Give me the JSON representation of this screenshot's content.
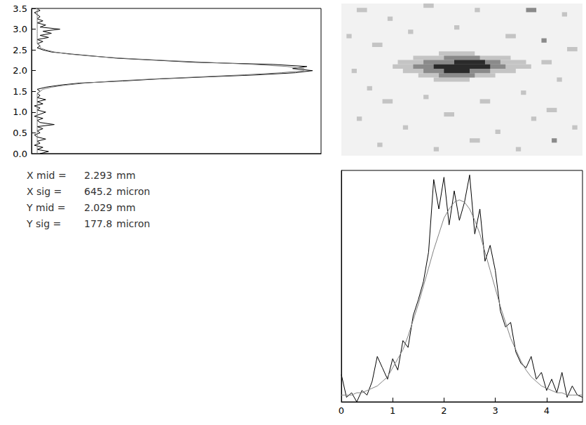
{
  "chart_data": [
    {
      "type": "line",
      "orientation": "horizontal",
      "grid": false,
      "tick_labels": "y",
      "xlim": [
        0,
        1.02
      ],
      "ylim": [
        0,
        3.5
      ],
      "yticks": [
        {
          "value": 0,
          "label": "0.0"
        },
        0.5,
        {
          "value": 1,
          "label": "1.0"
        },
        1.5,
        {
          "value": 2,
          "label": "2.0"
        },
        2.5,
        {
          "value": 3,
          "label": "3.0"
        },
        3.5
      ],
      "y": [
        0,
        0.05,
        0.1,
        0.15,
        0.2,
        0.25,
        0.3,
        0.35,
        0.4,
        0.45,
        0.5,
        0.55,
        0.6,
        0.65,
        0.7,
        0.75,
        0.8,
        0.85,
        0.9,
        0.95,
        1,
        1.05,
        1.1,
        1.15,
        1.2,
        1.25,
        1.3,
        1.35,
        1.4,
        1.45,
        1.5,
        1.55,
        1.6,
        1.65,
        1.7,
        1.75,
        1.8,
        1.85,
        1.9,
        1.95,
        2,
        2.05,
        2.1,
        2.15,
        2.2,
        2.25,
        2.3,
        2.35,
        2.4,
        2.45,
        2.5,
        2.55,
        2.6,
        2.65,
        2.7,
        2.75,
        2.8,
        2.85,
        2.9,
        2.95,
        3,
        3.05,
        3.1,
        3.15,
        3.2,
        3.25,
        3.3,
        3.35,
        3.4,
        3.45,
        3.5
      ],
      "series": [
        {
          "color": "#000000",
          "values": [
            0.03,
            0.06,
            0.02,
            0.04,
            0.01,
            0.03,
            0.02,
            0.05,
            0.02,
            0.01,
            0.03,
            0.02,
            0.04,
            0.02,
            0.08,
            0.03,
            0.02,
            0.04,
            0.01,
            0.03,
            0.05,
            0.02,
            0.03,
            0.01,
            0.04,
            0.02,
            0.05,
            0.02,
            0.03,
            0.02,
            0.03,
            0.02,
            0.05,
            0.1,
            0.17,
            0.32,
            0.45,
            0.62,
            0.8,
            0.93,
            0.99,
            0.92,
            0.97,
            0.85,
            0.58,
            0.44,
            0.3,
            0.22,
            0.14,
            0.07,
            0.04,
            0.02,
            0.03,
            0.02,
            0.04,
            0.02,
            0.06,
            0.03,
            0.07,
            0.04,
            0.1,
            0.03,
            0.05,
            0.02,
            0.04,
            0.02,
            0.03,
            0.02,
            0.01,
            0.03,
            0.02
          ]
        },
        {
          "color": "#808080",
          "values": [
            0.02,
            0.02,
            0.02,
            0.02,
            0.02,
            0.02,
            0.02,
            0.02,
            0.02,
            0.02,
            0.02,
            0.02,
            0.02,
            0.02,
            0.02,
            0.02,
            0.02,
            0.02,
            0.02,
            0.02,
            0.02,
            0.02,
            0.02,
            0.02,
            0.02,
            0.02,
            0.02,
            0.02,
            0.02,
            0.02,
            0.03,
            0.04,
            0.07,
            0.12,
            0.19,
            0.29,
            0.43,
            0.59,
            0.75,
            0.88,
            0.96,
            0.96,
            0.9,
            0.78,
            0.62,
            0.46,
            0.32,
            0.21,
            0.13,
            0.08,
            0.05,
            0.03,
            0.03,
            0.02,
            0.02,
            0.02,
            0.02,
            0.02,
            0.02,
            0.02,
            0.02,
            0.02,
            0.02,
            0.02,
            0.02,
            0.02,
            0.02,
            0.02,
            0.02,
            0.02,
            0.02
          ]
        }
      ]
    },
    {
      "type": "heatmap",
      "grid": false,
      "tick_labels": false,
      "xlim": [
        0,
        4.7
      ],
      "ylim": [
        0,
        3.5
      ],
      "colors": [
        "#c4c4c4",
        "#8a8a8a",
        "#2a2a2a"
      ],
      "segments": [
        [
          0.3,
          0.5,
          3.3,
          3.4,
          1
        ],
        [
          0.9,
          1.0,
          3.1,
          3.2,
          1
        ],
        [
          1.6,
          1.8,
          3.4,
          3.5,
          1
        ],
        [
          2.6,
          2.7,
          3.3,
          3.4,
          1
        ],
        [
          3.6,
          3.8,
          3.3,
          3.4,
          2
        ],
        [
          4.3,
          4.4,
          3.2,
          3.3,
          1
        ],
        [
          0.1,
          0.2,
          2.7,
          2.8,
          1
        ],
        [
          0.6,
          0.8,
          2.5,
          2.6,
          1
        ],
        [
          1.3,
          1.4,
          2.8,
          2.9,
          1
        ],
        [
          2.2,
          2.3,
          2.9,
          3.0,
          1
        ],
        [
          3.2,
          3.4,
          2.7,
          2.8,
          1
        ],
        [
          3.9,
          4.0,
          2.6,
          2.7,
          2
        ],
        [
          4.4,
          4.6,
          2.4,
          2.5,
          1
        ],
        [
          0.2,
          0.3,
          1.9,
          2.0,
          1
        ],
        [
          0.5,
          0.6,
          1.5,
          1.6,
          1
        ],
        [
          3.9,
          4.1,
          2.1,
          2.2,
          1
        ],
        [
          4.2,
          4.3,
          1.7,
          1.8,
          1
        ],
        [
          0.8,
          1.0,
          1.2,
          1.3,
          1
        ],
        [
          1.6,
          1.7,
          1.3,
          1.4,
          1
        ],
        [
          2.7,
          2.9,
          1.2,
          1.3,
          1
        ],
        [
          3.5,
          3.6,
          1.4,
          1.5,
          1
        ],
        [
          4.0,
          4.2,
          1.0,
          1.1,
          1
        ],
        [
          0.3,
          0.4,
          0.8,
          0.9,
          1
        ],
        [
          1.2,
          1.3,
          0.6,
          0.7,
          1
        ],
        [
          2.0,
          2.2,
          0.9,
          1.0,
          1
        ],
        [
          3.0,
          3.1,
          0.5,
          0.6,
          1
        ],
        [
          3.7,
          3.8,
          0.8,
          0.9,
          1
        ],
        [
          4.5,
          4.6,
          0.6,
          0.7,
          1
        ],
        [
          0.7,
          0.8,
          0.2,
          0.3,
          1
        ],
        [
          1.8,
          1.9,
          0.1,
          0.2,
          1
        ],
        [
          2.5,
          2.7,
          0.3,
          0.4,
          1
        ],
        [
          3.4,
          3.5,
          0.1,
          0.2,
          1
        ],
        [
          4.1,
          4.2,
          0.3,
          0.4,
          2
        ],
        [
          1.9,
          2.6,
          2.3,
          2.4,
          1
        ],
        [
          1.4,
          3.3,
          2.2,
          2.3,
          1
        ],
        [
          1.1,
          3.6,
          2.1,
          2.2,
          1
        ],
        [
          1.0,
          3.7,
          2.0,
          2.1,
          1
        ],
        [
          1.2,
          3.4,
          1.9,
          2.0,
          1
        ],
        [
          1.5,
          3.0,
          1.8,
          1.9,
          1
        ],
        [
          1.8,
          2.5,
          1.7,
          1.8,
          1
        ],
        [
          2.0,
          2.7,
          2.2,
          2.3,
          2
        ],
        [
          1.6,
          3.1,
          2.1,
          2.2,
          2
        ],
        [
          1.4,
          3.2,
          2.0,
          2.1,
          2
        ],
        [
          1.6,
          2.9,
          1.9,
          2.0,
          2
        ],
        [
          1.9,
          2.6,
          1.8,
          1.9,
          2
        ],
        [
          2.2,
          2.8,
          2.1,
          2.2,
          3
        ],
        [
          1.8,
          2.9,
          2.0,
          2.1,
          3
        ],
        [
          2.0,
          2.5,
          1.9,
          2.0,
          3
        ]
      ]
    },
    {
      "type": "line",
      "grid": false,
      "tick_labels": "x",
      "xlim": [
        0,
        4.7
      ],
      "xticks": [
        0,
        1,
        2,
        3,
        4
      ],
      "ylim": [
        0,
        1.02
      ],
      "x": [
        0,
        0.1,
        0.2,
        0.3,
        0.4,
        0.5,
        0.6,
        0.7,
        0.8,
        0.9,
        1,
        1.1,
        1.2,
        1.3,
        1.4,
        1.5,
        1.6,
        1.7,
        1.8,
        1.9,
        2,
        2.1,
        2.2,
        2.3,
        2.4,
        2.5,
        2.6,
        2.7,
        2.8,
        2.9,
        3,
        3.1,
        3.2,
        3.3,
        3.4,
        3.5,
        3.6,
        3.7,
        3.8,
        3.9,
        4,
        4.1,
        4.2,
        4.3,
        4.4,
        4.5,
        4.6,
        4.7
      ],
      "series": [
        {
          "color": "#000000",
          "values": [
            0.12,
            0.02,
            0.04,
            0.0,
            0.05,
            0.03,
            0.09,
            0.2,
            0.15,
            0.1,
            0.19,
            0.14,
            0.27,
            0.24,
            0.38,
            0.45,
            0.53,
            0.66,
            0.98,
            0.85,
            0.99,
            0.78,
            0.93,
            0.8,
            0.88,
            1.0,
            0.74,
            0.85,
            0.62,
            0.69,
            0.58,
            0.4,
            0.33,
            0.35,
            0.22,
            0.17,
            0.15,
            0.2,
            0.1,
            0.13,
            0.05,
            0.1,
            0.04,
            0.13,
            0.02,
            0.07,
            0.03,
            0.02
          ]
        },
        {
          "color": "#808080",
          "values": [
            0.03,
            0.03,
            0.03,
            0.04,
            0.04,
            0.05,
            0.06,
            0.07,
            0.09,
            0.11,
            0.15,
            0.19,
            0.23,
            0.29,
            0.36,
            0.43,
            0.51,
            0.59,
            0.67,
            0.74,
            0.81,
            0.85,
            0.88,
            0.89,
            0.88,
            0.85,
            0.8,
            0.74,
            0.66,
            0.58,
            0.5,
            0.42,
            0.35,
            0.28,
            0.23,
            0.18,
            0.14,
            0.11,
            0.09,
            0.07,
            0.06,
            0.05,
            0.04,
            0.04,
            0.03,
            0.03,
            0.03,
            0.03
          ]
        }
      ]
    }
  ],
  "stats": [
    {
      "label": "X mid =",
      "value": 2.293,
      "unit": "mm"
    },
    {
      "label": "X sig =",
      "value": 645.2,
      "unit": "micron"
    },
    {
      "label": "Y mid =",
      "value": 2.029,
      "unit": "mm"
    },
    {
      "label": "Y sig =",
      "value": 177.8,
      "unit": "micron"
    }
  ]
}
